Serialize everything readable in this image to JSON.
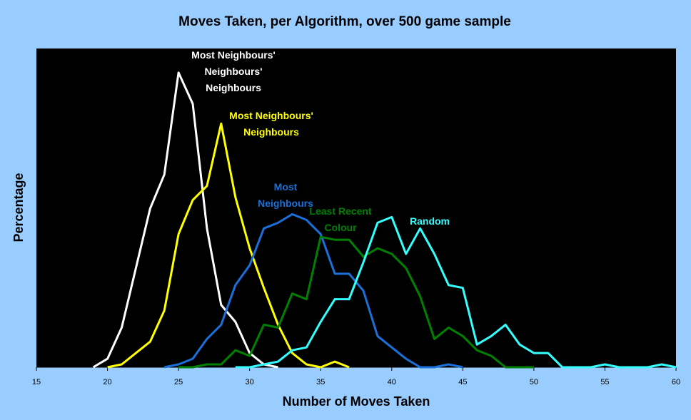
{
  "chart_data": {
    "type": "line",
    "title": "Moves Taken, per Algorithm, over 500 game sample",
    "xlabel": "Number of Moves Taken",
    "ylabel": "Percentage",
    "xlim": [
      15,
      60
    ],
    "ylim": [
      0,
      22.5
    ],
    "x_ticks": [
      15,
      20,
      25,
      30,
      35,
      40,
      45,
      50,
      55,
      60
    ],
    "grid": false,
    "legend": "none",
    "plot_background": "#000000",
    "page_background": "#99ccff",
    "series": [
      {
        "color": "#ffffff",
        "label_lines": [
          "Most Neighbours'",
          "Neighbours'",
          "Neighbours"
        ],
        "x": [
          19,
          20,
          21,
          22,
          23,
          24,
          25,
          26,
          27,
          28,
          29,
          30,
          31,
          32
        ],
        "y": [
          0.0,
          0.6,
          2.8,
          7.0,
          11.2,
          13.6,
          20.8,
          18.6,
          9.8,
          4.4,
          3.2,
          1.0,
          0.2,
          0.0
        ]
      },
      {
        "color": "#ffff00",
        "label_lines": [
          "Most Neighbours'",
          "Neighbours"
        ],
        "x": [
          20,
          21,
          22,
          23,
          24,
          25,
          26,
          27,
          28,
          29,
          30,
          31,
          32,
          33,
          34,
          35,
          36,
          37
        ],
        "y": [
          0.0,
          0.2,
          1.0,
          1.8,
          4.0,
          9.4,
          11.8,
          12.8,
          17.2,
          12.0,
          8.4,
          5.6,
          3.0,
          1.0,
          0.2,
          0.0,
          0.4,
          0.0
        ]
      },
      {
        "color": "#1a6fd8",
        "label_lines": [
          "Most",
          "Neighbours"
        ],
        "x": [
          24,
          25,
          26,
          27,
          28,
          29,
          30,
          31,
          32,
          33,
          34,
          35,
          36,
          37,
          38,
          39,
          40,
          41,
          42,
          43,
          44,
          45
        ],
        "y": [
          0.0,
          0.2,
          0.6,
          2.0,
          3.0,
          5.8,
          7.2,
          9.8,
          10.2,
          10.8,
          10.4,
          9.4,
          6.6,
          6.6,
          5.4,
          2.2,
          1.4,
          0.6,
          0.0,
          0.0,
          0.2,
          0.0
        ]
      },
      {
        "color": "#008000",
        "label_lines": [
          "Least Recent",
          "Colour"
        ],
        "x": [
          25,
          26,
          27,
          28,
          29,
          30,
          31,
          32,
          33,
          34,
          35,
          36,
          37,
          38,
          39,
          40,
          41,
          42,
          43,
          44,
          45,
          46,
          47,
          48,
          49,
          50
        ],
        "y": [
          0.0,
          0.0,
          0.2,
          0.2,
          1.2,
          0.8,
          3.0,
          2.8,
          5.2,
          4.8,
          9.2,
          9.0,
          9.0,
          7.8,
          8.4,
          8.0,
          7.0,
          5.0,
          2.0,
          2.8,
          2.2,
          1.2,
          0.8,
          0.0,
          0.0,
          0.0
        ]
      },
      {
        "color": "#33ffff",
        "label_lines": [
          "Random"
        ],
        "x": [
          29,
          30,
          31,
          32,
          33,
          34,
          35,
          36,
          37,
          38,
          39,
          40,
          41,
          42,
          43,
          44,
          45,
          46,
          47,
          48,
          49,
          50,
          51,
          52,
          53,
          54,
          55,
          56,
          57,
          58,
          59,
          60
        ],
        "y": [
          0.0,
          0.0,
          0.2,
          0.4,
          1.2,
          1.4,
          3.2,
          4.8,
          4.8,
          7.4,
          10.2,
          10.6,
          8.0,
          9.8,
          8.0,
          5.8,
          5.6,
          1.6,
          2.2,
          3.0,
          1.6,
          1.0,
          1.0,
          0.0,
          0.0,
          0.0,
          0.2,
          0.0,
          0.0,
          0.0,
          0.2,
          0.0
        ]
      }
    ]
  }
}
